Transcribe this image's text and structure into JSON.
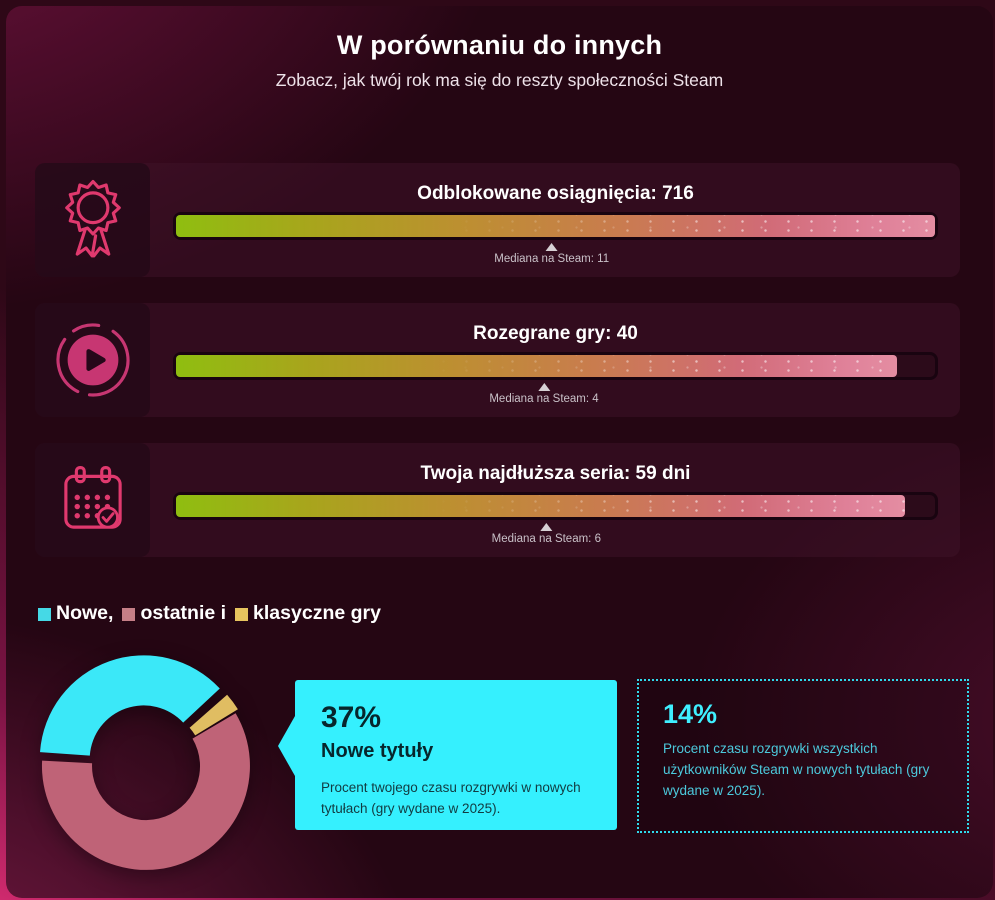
{
  "page": {
    "title": "W porównaniu do innych",
    "subtitle": "Zobacz, jak twój rok ma się do reszty społeczności Steam"
  },
  "colors": {
    "accent_cyan": "#3BE8F8",
    "accent_rose": "#BF6377",
    "accent_gold": "#E0BD62",
    "icon_pink": "#E0396E",
    "bar_gradient_start": "#8FBE10",
    "bar_gradient_end": "#E48DA2",
    "callout_bg": "#35F0FE"
  },
  "stats": [
    {
      "icon": "award-icon",
      "label": "Odblokowane osiągnięcia: 716",
      "value": 716,
      "median_label": "Mediana na Steam: 11",
      "median": 11,
      "fill_pct": 100,
      "median_pct": 49.5
    },
    {
      "icon": "play-icon",
      "label": "Rozegrane gry: 40",
      "value": 40,
      "median_label": "Mediana na Steam: 4",
      "median": 4,
      "fill_pct": 95,
      "median_pct": 48.5
    },
    {
      "icon": "calendar-check-icon",
      "label": "Twoja najdłuższa seria: 59 dni",
      "value": 59,
      "median_label": "Mediana na Steam: 6",
      "median": 6,
      "fill_pct": 96,
      "median_pct": 48.8
    }
  ],
  "legend": {
    "items": [
      {
        "label": "Nowe,",
        "color": "#45D9E6"
      },
      {
        "label": "ostatnie i",
        "color": "#C67F87"
      },
      {
        "label": "klasyczne gry",
        "color": "#E7C45F"
      }
    ]
  },
  "callout": {
    "percent": "37%",
    "title": "Nowe tytuły",
    "description": "Procent twojego czasu rozgrywki w nowych tytułach (gry wydane w 2025)."
  },
  "benchmark": {
    "percent": "14%",
    "description": "Procent czasu rozgrywki wszystkich użytkowników Steam w nowych tytułach (gry wydane w 2025)."
  },
  "chart_data": [
    {
      "type": "bar",
      "title": "Odblokowane osiągnięcia",
      "value": 716,
      "median_steam": 11,
      "fill_pct": 100,
      "bar_gradient": [
        "#8FBE10",
        "#C97C4E",
        "#E48DA2"
      ]
    },
    {
      "type": "bar",
      "title": "Rozegrane gry",
      "value": 40,
      "median_steam": 4,
      "fill_pct": 95,
      "bar_gradient": [
        "#8FBE10",
        "#C97C4E",
        "#E48DA2"
      ]
    },
    {
      "type": "bar",
      "title": "Twoja najdłuższa seria (dni)",
      "value": 59,
      "median_steam": 6,
      "fill_pct": 96,
      "bar_gradient": [
        "#8FBE10",
        "#C97C4E",
        "#E48DA2"
      ]
    },
    {
      "type": "pie",
      "title": "Podział czasu rozgrywki",
      "donut": true,
      "categories": [
        "Nowe",
        "ostatnie",
        "klasyczne"
      ],
      "values": [
        37,
        60,
        3
      ],
      "colors": [
        "#3BE8F8",
        "#BF6377",
        "#E0BD62"
      ],
      "exploded_slice": "Nowe",
      "user_new_titles_pct": 37,
      "steam_avg_new_titles_pct": 14
    }
  ]
}
